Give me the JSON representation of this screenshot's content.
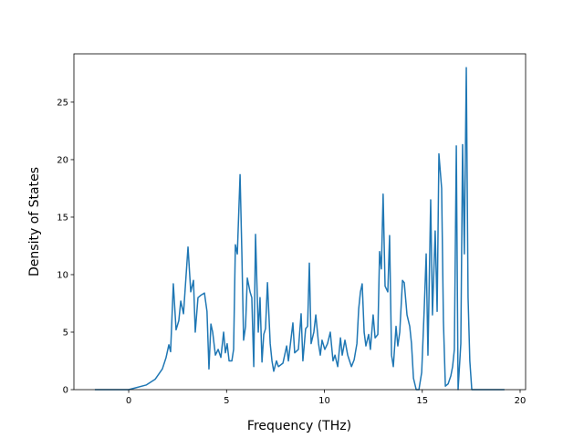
{
  "chart_data": {
    "type": "line",
    "xlabel": "Frequency (THz)",
    "ylabel": "Density of States",
    "x": [
      -1.73,
      0,
      0.89,
      1.35,
      1.72,
      1.91,
      2.05,
      2.14,
      2.28,
      2.42,
      2.56,
      2.66,
      2.8,
      3.03,
      3.17,
      3.31,
      3.4,
      3.54,
      3.68,
      3.87,
      4.0,
      4.1,
      4.2,
      4.29,
      4.43,
      4.57,
      4.71,
      4.85,
      4.94,
      5.03,
      5.13,
      5.27,
      5.36,
      5.45,
      5.55,
      5.69,
      5.78,
      5.87,
      5.97,
      6.06,
      6.2,
      6.29,
      6.39,
      6.48,
      6.62,
      6.71,
      6.81,
      6.9,
      6.99,
      7.09,
      7.23,
      7.32,
      7.41,
      7.55,
      7.65,
      7.88,
      8.07,
      8.16,
      8.39,
      8.48,
      8.67,
      8.81,
      8.9,
      9.04,
      9.14,
      9.23,
      9.32,
      9.46,
      9.56,
      9.7,
      9.79,
      9.88,
      10.02,
      10.16,
      10.3,
      10.44,
      10.54,
      10.68,
      10.82,
      10.91,
      11.05,
      11.19,
      11.38,
      11.52,
      11.66,
      11.75,
      11.84,
      11.93,
      12.03,
      12.12,
      12.26,
      12.35,
      12.49,
      12.59,
      12.73,
      12.82,
      12.91,
      13.0,
      13.1,
      13.24,
      13.33,
      13.43,
      13.52,
      13.66,
      13.75,
      13.85,
      13.99,
      14.08,
      14.22,
      14.36,
      14.45,
      14.55,
      14.69,
      14.83,
      14.97,
      15.1,
      15.2,
      15.29,
      15.43,
      15.52,
      15.66,
      15.76,
      15.85,
      15.99,
      16.08,
      16.18,
      16.32,
      16.46,
      16.55,
      16.64,
      16.74,
      16.83,
      16.97,
      17.06,
      17.15,
      17.25,
      17.34,
      17.43,
      17.53,
      17.67,
      19.2
    ],
    "series": [
      {
        "color": "#1f77b4",
        "values": [
          0,
          0,
          0.4,
          0.9,
          1.8,
          2.8,
          3.9,
          3.3,
          9.2,
          5.2,
          6.0,
          7.7,
          6.6,
          12.4,
          8.5,
          9.5,
          5.0,
          8.0,
          8.2,
          8.4,
          6.8,
          1.8,
          5.7,
          5.0,
          3.0,
          3.5,
          2.8,
          5.0,
          3.2,
          4.0,
          2.5,
          2.5,
          3.5,
          12.6,
          11.8,
          18.7,
          12.0,
          4.3,
          5.5,
          9.7,
          8.5,
          8.0,
          2.0,
          13.5,
          5.0,
          8.0,
          2.4,
          4.8,
          5.3,
          9.3,
          4.0,
          2.5,
          1.6,
          2.5,
          2.0,
          2.3,
          3.8,
          2.5,
          5.8,
          3.2,
          3.5,
          6.6,
          2.5,
          5.3,
          5.5,
          11.0,
          4.0,
          5.0,
          6.5,
          4.0,
          3.0,
          4.3,
          3.5,
          4.0,
          5.0,
          2.5,
          3.0,
          2.0,
          4.5,
          3.0,
          4.3,
          3.0,
          2.0,
          2.6,
          4.0,
          7.0,
          8.5,
          9.2,
          5.0,
          3.8,
          4.8,
          3.5,
          6.5,
          4.5,
          4.8,
          12.0,
          10.5,
          17.0,
          9.0,
          8.5,
          13.4,
          3.0,
          2.0,
          5.5,
          3.8,
          5.0,
          9.5,
          9.3,
          6.5,
          5.5,
          4.0,
          1.0,
          0,
          0,
          1.5,
          7.0,
          11.8,
          3.0,
          16.5,
          6.5,
          13.8,
          6.8,
          20.5,
          17.5,
          6.0,
          0.3,
          0.5,
          1.2,
          2.0,
          3.5,
          21.2,
          0,
          4.0,
          21.3,
          11.8,
          28.0,
          8.0,
          2.5,
          0,
          0,
          0
        ]
      }
    ],
    "xlim": [
      -2.8,
      20.28
    ],
    "ylim": [
      0,
      29.2
    ],
    "xticks": [
      0,
      5,
      10,
      15,
      20
    ],
    "yticks": [
      0,
      5,
      10,
      15,
      20,
      25
    ]
  }
}
